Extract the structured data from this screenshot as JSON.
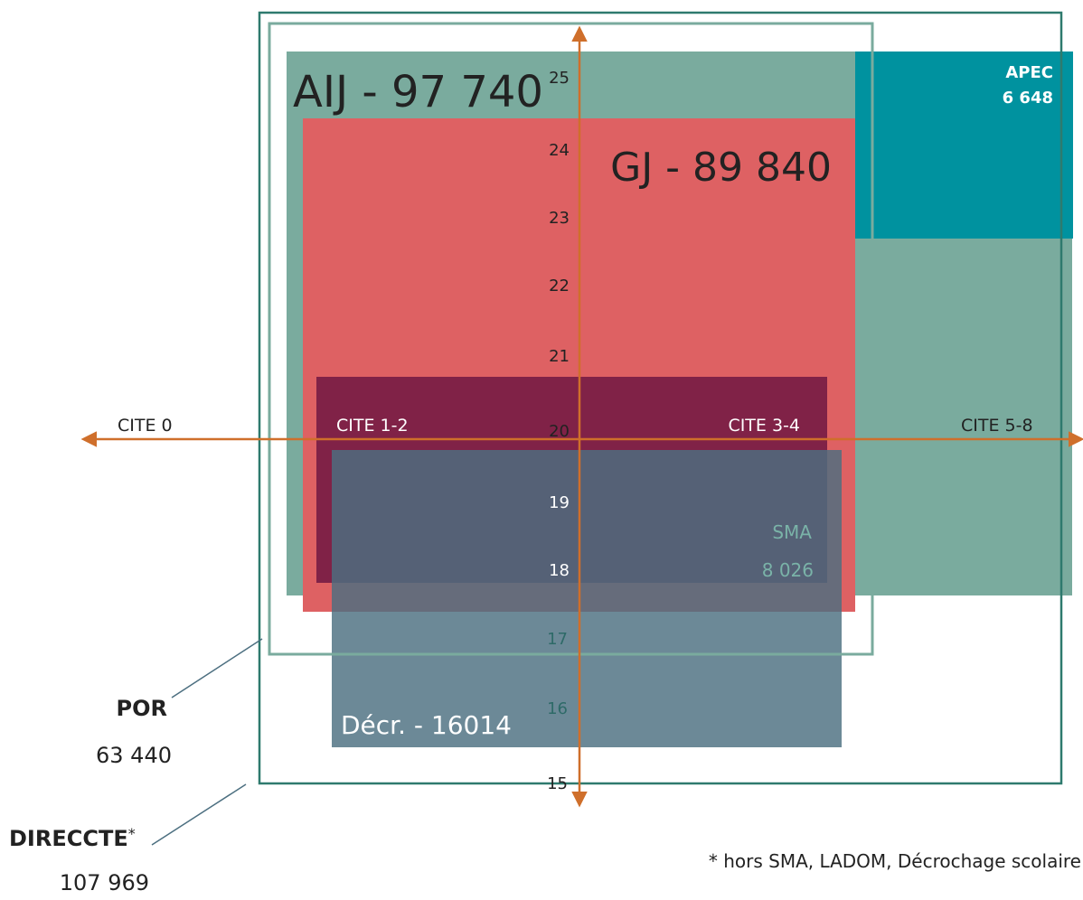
{
  "colors": {
    "aij": "#7aab9e",
    "gj": "#de6163",
    "apec": "#00929f",
    "cite_band": "#802247",
    "decr": "#4c6f80",
    "sma_text": "#7ab3a8",
    "decr_tick_text": "#2e6a68",
    "axis": "#cf6f2b",
    "frame_outer": "#2e7a6e",
    "frame_inner": "#7aab9e",
    "text_dark": "#222222",
    "text_white": "#ffffff"
  },
  "programs": {
    "aij": {
      "label": "AIJ - 97 740"
    },
    "gj": {
      "label": "GJ - 89 840"
    },
    "apec": {
      "label_line1": "APEC",
      "label_line2": "6 648"
    },
    "sma": {
      "label_line1": "SMA",
      "label_line2": "8 026"
    },
    "decr": {
      "label": "Décr. - 16014"
    }
  },
  "axis": {
    "x_labels": {
      "left": "CITE 0",
      "center_left": "CITE 1-2",
      "center_right": "CITE 3-4",
      "right": "CITE 5-8"
    },
    "y_ticks": [
      "25",
      "24",
      "23",
      "22",
      "21",
      "20",
      "19",
      "18",
      "17",
      "16",
      "15"
    ]
  },
  "callouts": {
    "por": {
      "name": "POR",
      "value": "63 440"
    },
    "direccte": {
      "name": "DIRECCTE",
      "asterisk": "*",
      "value": "107 969"
    }
  },
  "footnote": "* hors SMA, LADOM, Décrochage scolaire"
}
